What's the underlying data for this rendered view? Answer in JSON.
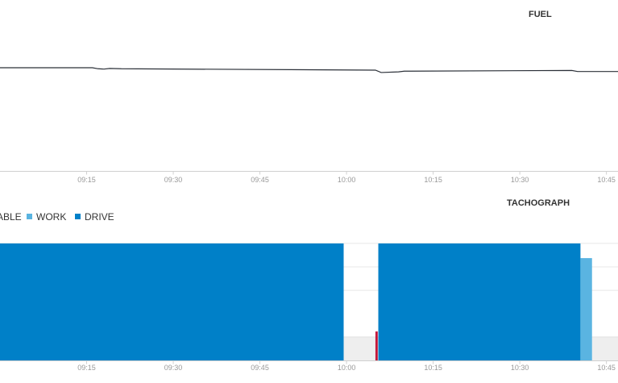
{
  "colors": {
    "fuel_line": "#2b3038",
    "drive": "#0080c8",
    "work": "#5ab4e1",
    "available": "#c4173a",
    "grid": "#e8e8e8",
    "axis": "#d0d0d0",
    "rest_band": "#eeeeee",
    "tick_text": "#999999",
    "title_text": "#333333"
  },
  "chart_data": [
    {
      "type": "line",
      "title": "FUEL",
      "x_ticks": [
        "09:15",
        "09:30",
        "09:45",
        "10:00",
        "10:15",
        "10:30",
        "10:45"
      ],
      "xlim": [
        "09:00",
        "10:47"
      ],
      "series": [
        {
          "x": [
            "09:00",
            "09:16",
            "09:17",
            "09:18",
            "09:19",
            "09:21",
            "10:05",
            "10:06",
            "10:09",
            "10:10",
            "10:39",
            "10:40",
            "10:47"
          ],
          "y": [
            84,
            84,
            85.5,
            86,
            85,
            85.5,
            87.5,
            91,
            90,
            89,
            88,
            89.5,
            89.5
          ]
        }
      ],
      "grid": false
    },
    {
      "type": "bar",
      "title": "TACHOGRAPH",
      "legend": {
        "position": "top-left",
        "entries": [
          {
            "label": "ABLE",
            "color": "#c4173a"
          },
          {
            "label": "WORK",
            "color": "#5ab4e1"
          },
          {
            "label": "DRIVE",
            "color": "#0080c8"
          }
        ]
      },
      "x_ticks": [
        "09:15",
        "09:30",
        "09:45",
        "10:00",
        "10:15",
        "10:30",
        "10:45"
      ],
      "xlim": [
        "09:00",
        "10:47"
      ],
      "activity_levels": {
        "drive": 4,
        "work": 3.5,
        "available": 1,
        "rest": 0
      },
      "segments": [
        {
          "activity": "drive",
          "start": "09:00",
          "end": "09:59.5"
        },
        {
          "activity": "available",
          "start": "10:05",
          "end": "10:05.4"
        },
        {
          "activity": "drive",
          "start": "10:05.5",
          "end": "10:40.5"
        },
        {
          "activity": "work",
          "start": "10:40.5",
          "end": "10:42.5"
        }
      ],
      "rest_band": [
        {
          "start": "09:59.5",
          "end": "10:05.5"
        },
        {
          "start": "10:42.5",
          "end": "10:47"
        }
      ],
      "grid": true
    }
  ]
}
